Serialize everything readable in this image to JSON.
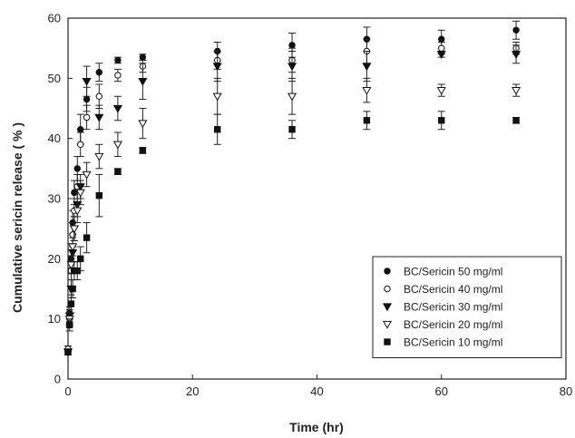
{
  "chart_data": {
    "type": "scatter",
    "title": "",
    "xlabel": "Time (hr)",
    "ylabel": "Cumulative sericin release ( % )",
    "xlim": [
      0,
      80
    ],
    "ylim": [
      0,
      60
    ],
    "xticks": [
      0,
      20,
      40,
      60,
      80
    ],
    "yticks": [
      0,
      10,
      20,
      30,
      40,
      50,
      60
    ],
    "grid": false,
    "legend_position": "bottom-right",
    "error_bars": true,
    "series": [
      {
        "name": "BC/Sericin 50 mg/ml",
        "marker": "filled-circle",
        "points": [
          {
            "x": 0,
            "y": 4.5,
            "err": 0.5
          },
          {
            "x": 0.25,
            "y": 11,
            "err": 1
          },
          {
            "x": 0.5,
            "y": 20,
            "err": 1.5
          },
          {
            "x": 0.75,
            "y": 26,
            "err": 2
          },
          {
            "x": 1,
            "y": 31,
            "err": 2
          },
          {
            "x": 1.5,
            "y": 35,
            "err": 2
          },
          {
            "x": 2,
            "y": 41.5,
            "err": 2.5
          },
          {
            "x": 3,
            "y": 46.5,
            "err": 2
          },
          {
            "x": 5,
            "y": 51,
            "err": 1.5
          },
          {
            "x": 8,
            "y": 53,
            "err": 0.5
          },
          {
            "x": 12,
            "y": 53.5,
            "err": 0.5
          },
          {
            "x": 24,
            "y": 54.5,
            "err": 1.5
          },
          {
            "x": 36,
            "y": 55.5,
            "err": 2
          },
          {
            "x": 48,
            "y": 56.5,
            "err": 2
          },
          {
            "x": 60,
            "y": 56.5,
            "err": 1.5
          },
          {
            "x": 72,
            "y": 58,
            "err": 1.5
          }
        ]
      },
      {
        "name": "BC/Sericin 40 mg/ml",
        "marker": "open-circle",
        "points": [
          {
            "x": 0,
            "y": 5,
            "err": 0.5
          },
          {
            "x": 0.25,
            "y": 10,
            "err": 1
          },
          {
            "x": 0.5,
            "y": 18,
            "err": 1.5
          },
          {
            "x": 0.75,
            "y": 24,
            "err": 2
          },
          {
            "x": 1,
            "y": 28,
            "err": 2
          },
          {
            "x": 1.5,
            "y": 32,
            "err": 2
          },
          {
            "x": 2,
            "y": 39,
            "err": 2
          },
          {
            "x": 3,
            "y": 43.5,
            "err": 2
          },
          {
            "x": 5,
            "y": 47,
            "err": 2
          },
          {
            "x": 8,
            "y": 50.5,
            "err": 1
          },
          {
            "x": 12,
            "y": 52,
            "err": 1
          },
          {
            "x": 24,
            "y": 53,
            "err": 1.5
          },
          {
            "x": 36,
            "y": 53,
            "err": 2
          },
          {
            "x": 48,
            "y": 54.5,
            "err": 2
          },
          {
            "x": 60,
            "y": 55,
            "err": 1
          },
          {
            "x": 72,
            "y": 55,
            "err": 1
          }
        ]
      },
      {
        "name": "BC/Sericin 30 mg/ml",
        "marker": "filled-triangle-down",
        "points": [
          {
            "x": 0,
            "y": 4.5,
            "err": 0.5
          },
          {
            "x": 0.25,
            "y": 10.5,
            "err": 1
          },
          {
            "x": 0.5,
            "y": 15,
            "err": 1.5
          },
          {
            "x": 0.75,
            "y": 21,
            "err": 1.5
          },
          {
            "x": 1,
            "y": 25,
            "err": 2
          },
          {
            "x": 1.5,
            "y": 29,
            "err": 2
          },
          {
            "x": 2,
            "y": 32,
            "err": 2
          },
          {
            "x": 3,
            "y": 49.5,
            "err": 2.5
          },
          {
            "x": 5,
            "y": 43.5,
            "err": 2
          },
          {
            "x": 8,
            "y": 45,
            "err": 2
          },
          {
            "x": 12,
            "y": 49.5,
            "err": 3
          },
          {
            "x": 24,
            "y": 52,
            "err": 2.5
          },
          {
            "x": 36,
            "y": 52,
            "err": 2.5
          },
          {
            "x": 48,
            "y": 52,
            "err": 2.5
          },
          {
            "x": 60,
            "y": 54,
            "err": 0.5
          },
          {
            "x": 72,
            "y": 54,
            "err": 1.5
          }
        ]
      },
      {
        "name": "BC/Sericin 20 mg/ml",
        "marker": "open-triangle-down",
        "points": [
          {
            "x": 0,
            "y": 4.5,
            "err": 0.5
          },
          {
            "x": 0.25,
            "y": 10,
            "err": 1
          },
          {
            "x": 0.5,
            "y": 19,
            "err": 1.5
          },
          {
            "x": 0.75,
            "y": 22,
            "err": 1.5
          },
          {
            "x": 1,
            "y": 25,
            "err": 2
          },
          {
            "x": 1.5,
            "y": 28,
            "err": 2
          },
          {
            "x": 2,
            "y": 31,
            "err": 2
          },
          {
            "x": 3,
            "y": 34,
            "err": 2
          },
          {
            "x": 5,
            "y": 37,
            "err": 2
          },
          {
            "x": 8,
            "y": 39,
            "err": 2
          },
          {
            "x": 12,
            "y": 42.5,
            "err": 2.5
          },
          {
            "x": 24,
            "y": 47,
            "err": 3
          },
          {
            "x": 36,
            "y": 47,
            "err": 3
          },
          {
            "x": 48,
            "y": 48,
            "err": 2
          },
          {
            "x": 60,
            "y": 48,
            "err": 1
          },
          {
            "x": 72,
            "y": 48,
            "err": 1
          }
        ]
      },
      {
        "name": "BC/Sericin 10 mg/ml",
        "marker": "filled-square",
        "points": [
          {
            "x": 0,
            "y": 4.5,
            "err": 0.5
          },
          {
            "x": 0.25,
            "y": 9,
            "err": 1
          },
          {
            "x": 0.5,
            "y": 12.5,
            "err": 1.5
          },
          {
            "x": 0.75,
            "y": 15,
            "err": 1.5
          },
          {
            "x": 1,
            "y": 18,
            "err": 1.5
          },
          {
            "x": 1.5,
            "y": 18,
            "err": 1.5
          },
          {
            "x": 2,
            "y": 20,
            "err": 2
          },
          {
            "x": 3,
            "y": 23.5,
            "err": 2.5
          },
          {
            "x": 5,
            "y": 30.5,
            "err": 3.5
          },
          {
            "x": 8,
            "y": 34.5,
            "err": 0.5
          },
          {
            "x": 12,
            "y": 38,
            "err": 0.5
          },
          {
            "x": 24,
            "y": 41.5,
            "err": 2.5
          },
          {
            "x": 36,
            "y": 41.5,
            "err": 1.5
          },
          {
            "x": 48,
            "y": 43,
            "err": 1.5
          },
          {
            "x": 60,
            "y": 43,
            "err": 1.5
          },
          {
            "x": 72,
            "y": 43,
            "err": 0.5
          }
        ]
      }
    ]
  }
}
